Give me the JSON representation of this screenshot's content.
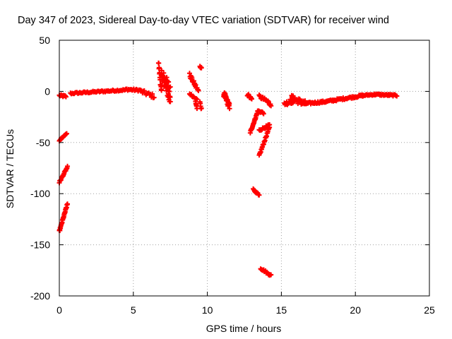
{
  "chart_data": {
    "type": "scatter",
    "title": "Day 347 of 2023, Sidereal Day-to-day VTEC variation (SDTVAR) for receiver wind",
    "xlabel": "GPS time / hours",
    "ylabel": "SDTVAR / TECUs",
    "xlim": [
      0,
      25
    ],
    "ylim": [
      -200,
      50
    ],
    "xticks": [
      0,
      5,
      10,
      15,
      20,
      25
    ],
    "yticks": [
      -200,
      -150,
      -100,
      -50,
      0,
      50
    ],
    "grid": true,
    "marker": "+",
    "marker_color": "#ff0000",
    "segments": [
      {
        "x0": 0.0,
        "x1": 0.45,
        "y0": -4,
        "y1": -5,
        "jitter": 1,
        "n": 12
      },
      {
        "x0": 0.75,
        "x1": 4.5,
        "y0": -2,
        "y1": 1.5,
        "jitter": 0.8,
        "n": 60
      },
      {
        "x0": 4.5,
        "x1": 5.5,
        "y0": 2,
        "y1": 1,
        "jitter": 1,
        "n": 18
      },
      {
        "x0": 5.5,
        "x1": 6.4,
        "y0": 0,
        "y1": -5,
        "jitter": 2,
        "n": 16
      },
      {
        "x0": 6.7,
        "x1": 6.9,
        "y0": 28,
        "y1": -2,
        "jitter": 3,
        "n": 14
      },
      {
        "x0": 6.9,
        "x1": 7.5,
        "y0": 15,
        "y1": 0,
        "jitter": 8,
        "n": 45
      },
      {
        "x0": 7.3,
        "x1": 7.5,
        "y0": -5,
        "y1": -10,
        "jitter": 2,
        "n": 5
      },
      {
        "x0": 8.8,
        "x1": 9.4,
        "y0": 16,
        "y1": 0,
        "jitter": 2,
        "n": 20
      },
      {
        "x0": 8.8,
        "x1": 9.3,
        "y0": -2,
        "y1": -8,
        "jitter": 1,
        "n": 10
      },
      {
        "x0": 9.2,
        "x1": 9.3,
        "y0": -10,
        "y1": -16,
        "jitter": 2,
        "n": 6
      },
      {
        "x0": 9.5,
        "x1": 9.6,
        "y0": -12,
        "y1": -18,
        "jitter": 2,
        "n": 5
      },
      {
        "x0": 9.5,
        "x1": 9.6,
        "y0": 25,
        "y1": 22,
        "jitter": 1,
        "n": 6
      },
      {
        "x0": 11.1,
        "x1": 11.5,
        "y0": -2,
        "y1": -15,
        "jitter": 3,
        "n": 30
      },
      {
        "x0": 12.7,
        "x1": 13.0,
        "y0": -3,
        "y1": -8,
        "jitter": 1.5,
        "n": 10
      },
      {
        "x0": 12.9,
        "x1": 13.4,
        "y0": -40,
        "y1": -20,
        "jitter": 1,
        "n": 24
      },
      {
        "x0": 13.4,
        "x1": 13.8,
        "y0": -19,
        "y1": -21,
        "jitter": 1,
        "n": 10
      },
      {
        "x0": 13.5,
        "x1": 14.1,
        "y0": -5,
        "y1": -10,
        "jitter": 1.5,
        "n": 16
      },
      {
        "x0": 13.5,
        "x1": 14.2,
        "y0": -38,
        "y1": -33,
        "jitter": 1,
        "n": 16
      },
      {
        "x0": 13.5,
        "x1": 14.2,
        "y0": -63,
        "y1": -35,
        "jitter": 1,
        "n": 26
      },
      {
        "x0": 14.1,
        "x1": 14.3,
        "y0": -10,
        "y1": -14,
        "jitter": 1,
        "n": 6
      },
      {
        "x0": 13.1,
        "x1": 13.5,
        "y0": -96,
        "y1": -101,
        "jitter": 1,
        "n": 10
      },
      {
        "x0": 13.6,
        "x1": 14.3,
        "y0": -173,
        "y1": -180,
        "jitter": 1,
        "n": 18
      },
      {
        "x0": 15.2,
        "x1": 15.9,
        "y0": -12,
        "y1": -9,
        "jitter": 2,
        "n": 18
      },
      {
        "x0": 15.6,
        "x1": 16.6,
        "y0": -6,
        "y1": -12,
        "jitter": 3,
        "n": 32
      },
      {
        "x0": 16.6,
        "x1": 18.0,
        "y0": -12,
        "y1": -10,
        "jitter": 1,
        "n": 30
      },
      {
        "x0": 18.0,
        "x1": 20.5,
        "y0": -10,
        "y1": -4,
        "jitter": 1,
        "n": 50
      },
      {
        "x0": 20.5,
        "x1": 21.3,
        "y0": -4,
        "y1": -3,
        "jitter": 0.7,
        "n": 16
      },
      {
        "x0": 21.3,
        "x1": 22.8,
        "y0": -3,
        "y1": -4,
        "jitter": 0.8,
        "n": 30
      },
      {
        "x0": 0.0,
        "x1": 0.5,
        "y0": -48,
        "y1": -41,
        "jitter": 0.6,
        "n": 14
      },
      {
        "x0": 0.0,
        "x1": 0.55,
        "y0": -89,
        "y1": -74,
        "jitter": 0.8,
        "n": 20
      },
      {
        "x0": 0.0,
        "x1": 0.55,
        "y0": -137,
        "y1": -110,
        "jitter": 1,
        "n": 30
      }
    ]
  }
}
